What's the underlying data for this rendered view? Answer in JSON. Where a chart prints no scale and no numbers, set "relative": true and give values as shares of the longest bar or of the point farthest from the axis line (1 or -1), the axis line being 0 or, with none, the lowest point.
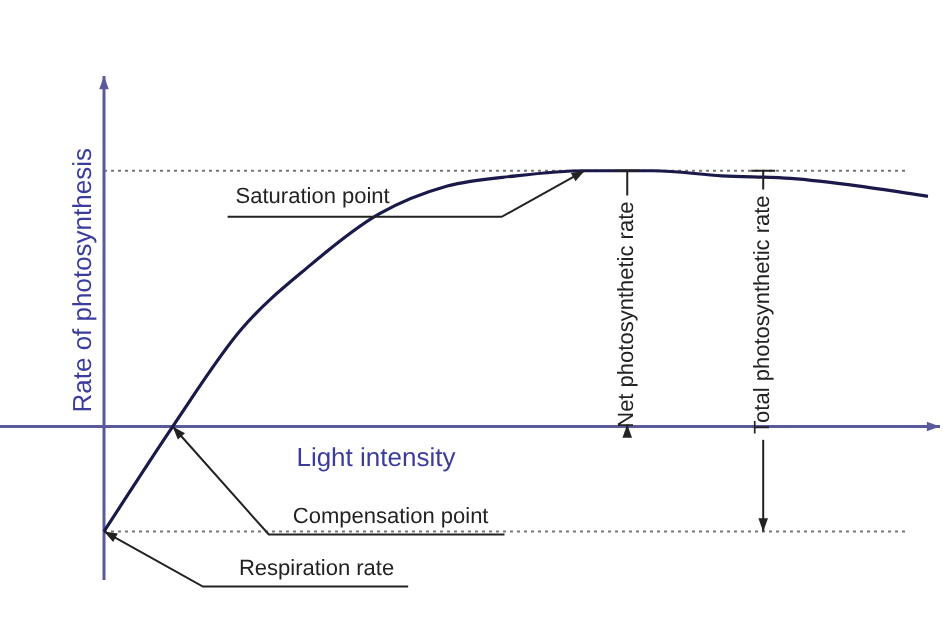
{
  "chart_data": {
    "type": "line",
    "relative": true,
    "xlabel": "Light intensity",
    "ylabel": "Rate of photosynthesis",
    "categories": [
      null,
      null,
      null,
      null,
      null,
      null,
      null,
      null,
      null,
      null,
      null,
      null,
      null
    ],
    "series": [
      {
        "color": "#1a1a4a",
        "values": [
          -0.41,
          0,
          0.38,
          0.63,
          0.83,
          0.94,
          0.98,
          1,
          1,
          0.98,
          0.97,
          0.94,
          0.9
        ]
      }
    ],
    "marker": "none",
    "line_style": "solid",
    "legend": false,
    "ref_lines": [
      {
        "axis": "y",
        "value": 0,
        "line_style": "solid",
        "color": "#5a5a9a"
      },
      {
        "axis": "y",
        "value": 1,
        "line_style": "dotted",
        "color": "#777777"
      },
      {
        "axis": "y",
        "value": -0.41,
        "line_style": "dotted",
        "color": "#777777"
      }
    ],
    "annotations": [
      "Saturation point",
      "Compensation point",
      "Respiration rate",
      "Net photosynthetic rate",
      "Total photosynthetic rate"
    ]
  }
}
